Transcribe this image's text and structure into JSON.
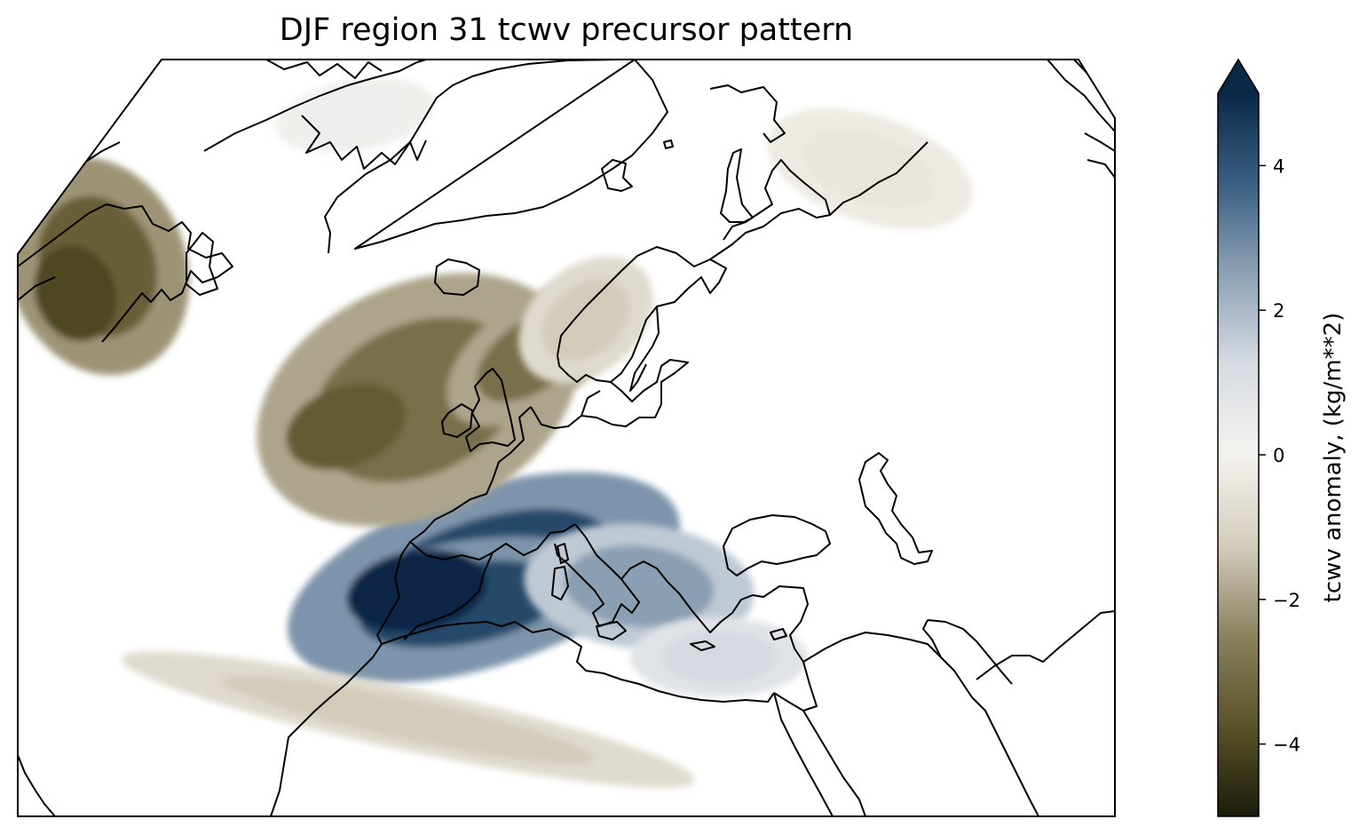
{
  "title": "DJF region 31 tcwv precursor pattern",
  "colorbar": {
    "label": "tcwv anomaly, (kg/m**2)",
    "min": -5,
    "max": 5,
    "extend": "max",
    "ticks": [
      -4,
      -2,
      0,
      2,
      4
    ],
    "tick_labels": [
      "−4",
      "−2",
      "0",
      "2",
      "4"
    ],
    "colors": [
      "#1b1c0a",
      "#5a5228",
      "#8b8260",
      "#d4cdbd",
      "#f4f2ee",
      "#d6dbe2",
      "#8ea2b6",
      "#3a5f82",
      "#0b2846"
    ]
  },
  "chart_data": {
    "type": "heatmap",
    "title": "DJF region 31 tcwv precursor pattern",
    "map": "Europe / North Atlantic (projected)",
    "season": "DJF",
    "region": 31,
    "variable": "tcwv",
    "colorbar_label": "tcwv anomaly, (kg/m**2)",
    "value_range": [
      -5,
      5
    ],
    "anomaly_centers": [
      {
        "location": "western Mediterranean / Iberia",
        "value": 5
      },
      {
        "location": "central Mediterranean / Italy",
        "value": 3
      },
      {
        "location": "eastern Mediterranean",
        "value": 1.5
      },
      {
        "location": "North Atlantic west of Ireland",
        "value": -3.5
      },
      {
        "location": "Labrador / western Atlantic",
        "value": -4
      },
      {
        "location": "Norway / North Sea",
        "value": -1.5
      },
      {
        "location": "Sahara band",
        "value": -1.5
      },
      {
        "location": "Barents / Kara Sea",
        "value": -0.5
      },
      {
        "location": "Greenland",
        "value": 0.3
      }
    ]
  }
}
